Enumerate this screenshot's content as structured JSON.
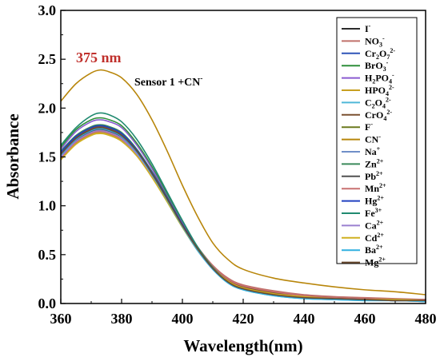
{
  "chart_data": {
    "type": "line",
    "xlabel": "Wavelength(nm)",
    "ylabel": "Absorbance",
    "xlim": [
      360,
      480
    ],
    "ylim": [
      0.0,
      3.0
    ],
    "xticks": [
      "360",
      "380",
      "400",
      "420",
      "440",
      "460",
      "480"
    ],
    "yticks": [
      "0.0",
      "0.5",
      "1.0",
      "1.5",
      "2.0",
      "2.5",
      "3.0"
    ],
    "grid": false,
    "legend_position": "right",
    "x": [
      360,
      365,
      370,
      373,
      376,
      380,
      385,
      390,
      395,
      400,
      405,
      410,
      415,
      420,
      430,
      440,
      450,
      460,
      470,
      480
    ],
    "annotations": {
      "peak_label": "375 nm",
      "peak_label_color": "#c0302c",
      "sensor_label": "Sensor 1 +CN",
      "sensor_label_sup": "-"
    },
    "series": [
      {
        "name": "I",
        "sup": "-",
        "color": "#2b2b2b",
        "values": [
          1.55,
          1.7,
          1.79,
          1.8,
          1.78,
          1.72,
          1.56,
          1.33,
          1.07,
          0.8,
          0.56,
          0.36,
          0.22,
          0.15,
          0.09,
          0.06,
          0.05,
          0.04,
          0.03,
          0.03
        ]
      },
      {
        "name": "NO",
        "sub": "3",
        "sup": "-",
        "color": "#c0706a",
        "values": [
          1.5,
          1.66,
          1.75,
          1.77,
          1.75,
          1.69,
          1.54,
          1.32,
          1.07,
          0.81,
          0.58,
          0.39,
          0.26,
          0.19,
          0.13,
          0.09,
          0.07,
          0.06,
          0.05,
          0.04
        ]
      },
      {
        "name": "Cr",
        "sub": "2",
        "name2": "O",
        "sub2": "7",
        "sup": "2-",
        "color": "#2f54b8",
        "values": [
          1.52,
          1.68,
          1.77,
          1.79,
          1.77,
          1.71,
          1.55,
          1.32,
          1.06,
          0.79,
          0.55,
          0.35,
          0.22,
          0.15,
          0.09,
          0.06,
          0.05,
          0.04,
          0.03,
          0.03
        ]
      },
      {
        "name": "BrO",
        "sub": "3",
        "sup": "-",
        "color": "#2f8f3a",
        "values": [
          1.6,
          1.78,
          1.88,
          1.9,
          1.88,
          1.82,
          1.64,
          1.4,
          1.12,
          0.83,
          0.57,
          0.37,
          0.23,
          0.15,
          0.09,
          0.06,
          0.05,
          0.04,
          0.03,
          0.03
        ]
      },
      {
        "name": "H",
        "sub": "2",
        "name2": "PO",
        "sub2": "4",
        "sup": "-",
        "color": "#8a5ad0",
        "values": [
          1.58,
          1.76,
          1.86,
          1.88,
          1.86,
          1.8,
          1.62,
          1.38,
          1.1,
          0.82,
          0.56,
          0.36,
          0.22,
          0.15,
          0.09,
          0.06,
          0.05,
          0.04,
          0.03,
          0.03
        ]
      },
      {
        "name": "HPO",
        "sub": "4",
        "sup": "2-",
        "color": "#c8a020",
        "values": [
          1.48,
          1.64,
          1.73,
          1.75,
          1.73,
          1.67,
          1.52,
          1.3,
          1.05,
          0.79,
          0.55,
          0.36,
          0.23,
          0.16,
          0.1,
          0.07,
          0.05,
          0.04,
          0.04,
          0.03
        ]
      },
      {
        "name": "C",
        "sub": "2",
        "name2": "O",
        "sub2": "4",
        "sup": "2-",
        "color": "#4fb8d8",
        "values": [
          1.5,
          1.66,
          1.75,
          1.76,
          1.74,
          1.68,
          1.52,
          1.3,
          1.04,
          0.78,
          0.54,
          0.35,
          0.21,
          0.14,
          0.08,
          0.05,
          0.04,
          0.03,
          0.03,
          0.02
        ]
      },
      {
        "name": "CrO",
        "sub": "4",
        "sup": "2-",
        "color": "#7a5030",
        "values": [
          1.54,
          1.7,
          1.79,
          1.81,
          1.79,
          1.73,
          1.57,
          1.34,
          1.08,
          0.81,
          0.57,
          0.37,
          0.24,
          0.17,
          0.11,
          0.08,
          0.06,
          0.05,
          0.04,
          0.04
        ]
      },
      {
        "name": "F",
        "sup": "-",
        "color": "#6b7a1e",
        "values": [
          1.52,
          1.68,
          1.77,
          1.78,
          1.76,
          1.7,
          1.54,
          1.32,
          1.06,
          0.8,
          0.56,
          0.36,
          0.22,
          0.15,
          0.09,
          0.06,
          0.05,
          0.04,
          0.03,
          0.03
        ]
      },
      {
        "name": "CN",
        "sup": "-",
        "color": "#b8860b",
        "values": [
          2.07,
          2.25,
          2.36,
          2.39,
          2.37,
          2.31,
          2.14,
          1.88,
          1.56,
          1.21,
          0.89,
          0.62,
          0.45,
          0.35,
          0.26,
          0.21,
          0.17,
          0.14,
          0.12,
          0.09
        ]
      },
      {
        "name": "Na",
        "sup": "+",
        "color": "#6f8fc8",
        "values": [
          1.53,
          1.69,
          1.78,
          1.8,
          1.78,
          1.72,
          1.56,
          1.33,
          1.07,
          0.8,
          0.56,
          0.36,
          0.22,
          0.15,
          0.09,
          0.06,
          0.05,
          0.04,
          0.03,
          0.03
        ]
      },
      {
        "name": "Zn",
        "sup": "2+",
        "color": "#3a8a5a",
        "values": [
          1.56,
          1.72,
          1.81,
          1.83,
          1.81,
          1.75,
          1.58,
          1.35,
          1.09,
          0.81,
          0.56,
          0.36,
          0.22,
          0.15,
          0.09,
          0.06,
          0.05,
          0.04,
          0.03,
          0.03
        ]
      },
      {
        "name": "Pb",
        "sup": "2+",
        "color": "#505050",
        "values": [
          1.51,
          1.67,
          1.76,
          1.78,
          1.76,
          1.7,
          1.54,
          1.32,
          1.06,
          0.79,
          0.55,
          0.36,
          0.22,
          0.15,
          0.09,
          0.06,
          0.05,
          0.04,
          0.03,
          0.03
        ]
      },
      {
        "name": "Mn",
        "sup": "2+",
        "color": "#c87070",
        "values": [
          1.49,
          1.65,
          1.74,
          1.76,
          1.74,
          1.68,
          1.53,
          1.31,
          1.06,
          0.8,
          0.57,
          0.38,
          0.25,
          0.18,
          0.12,
          0.08,
          0.06,
          0.05,
          0.04,
          0.04
        ]
      },
      {
        "name": "Hg",
        "sup": "2+",
        "color": "#2040c0",
        "values": [
          1.55,
          1.71,
          1.8,
          1.82,
          1.8,
          1.74,
          1.57,
          1.34,
          1.08,
          0.81,
          0.56,
          0.36,
          0.22,
          0.15,
          0.09,
          0.06,
          0.05,
          0.04,
          0.03,
          0.03
        ]
      },
      {
        "name": "Fe",
        "sup": "3+",
        "color": "#208a70",
        "values": [
          1.62,
          1.8,
          1.92,
          1.95,
          1.93,
          1.86,
          1.68,
          1.43,
          1.14,
          0.85,
          0.58,
          0.37,
          0.23,
          0.15,
          0.09,
          0.06,
          0.05,
          0.04,
          0.03,
          0.03
        ]
      },
      {
        "name": "Ca",
        "sup": "2+",
        "color": "#9a80d0",
        "values": [
          1.5,
          1.66,
          1.75,
          1.77,
          1.75,
          1.69,
          1.53,
          1.31,
          1.05,
          0.79,
          0.55,
          0.35,
          0.22,
          0.15,
          0.09,
          0.06,
          0.05,
          0.04,
          0.03,
          0.03
        ]
      },
      {
        "name": "Cd",
        "sup": "2+",
        "color": "#d0b020",
        "values": [
          1.47,
          1.63,
          1.72,
          1.74,
          1.72,
          1.66,
          1.51,
          1.29,
          1.04,
          0.78,
          0.55,
          0.36,
          0.23,
          0.16,
          0.1,
          0.07,
          0.05,
          0.04,
          0.04,
          0.03
        ]
      },
      {
        "name": "Ba",
        "sup": "2+",
        "color": "#30b0e0",
        "values": [
          1.52,
          1.68,
          1.77,
          1.79,
          1.77,
          1.71,
          1.55,
          1.32,
          1.06,
          0.79,
          0.55,
          0.35,
          0.21,
          0.14,
          0.08,
          0.05,
          0.04,
          0.03,
          0.03,
          0.02
        ]
      },
      {
        "name": "Mg",
        "sup": "2+",
        "color": "#6a4a30",
        "values": [
          1.53,
          1.69,
          1.78,
          1.8,
          1.78,
          1.72,
          1.56,
          1.33,
          1.07,
          0.8,
          0.56,
          0.36,
          0.22,
          0.15,
          0.09,
          0.06,
          0.05,
          0.04,
          0.03,
          0.03
        ]
      }
    ]
  }
}
